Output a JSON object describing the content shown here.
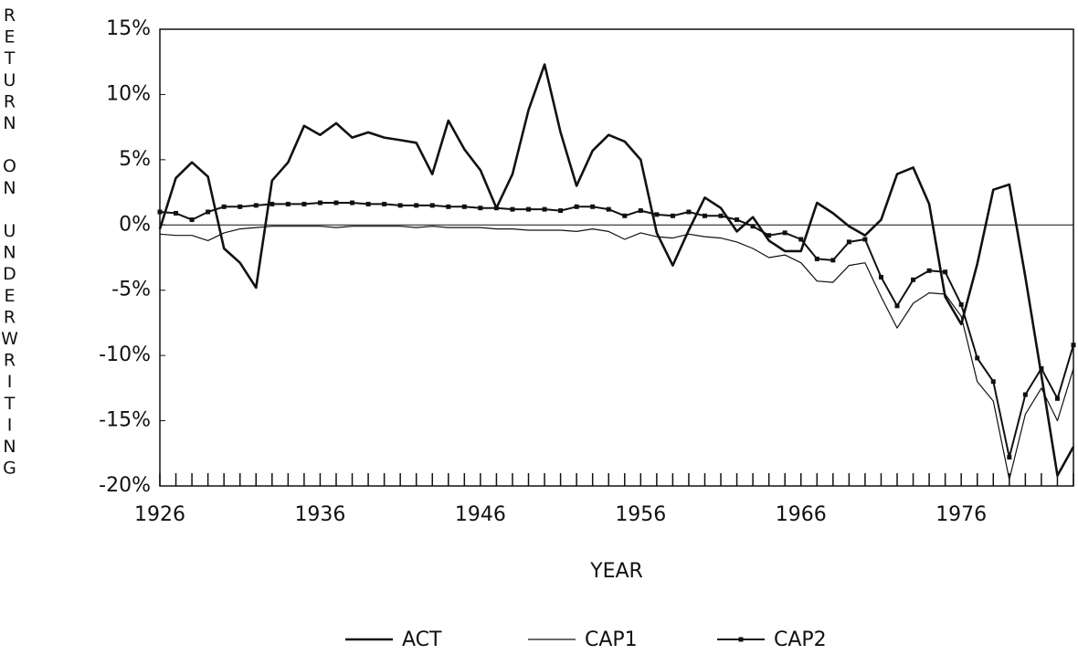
{
  "chart_data": {
    "type": "line",
    "ylabel": "RETURN ON UNDERWRITING",
    "xlabel": "YEAR",
    "x": [
      1926,
      1927,
      1928,
      1929,
      1930,
      1931,
      1932,
      1933,
      1934,
      1935,
      1936,
      1937,
      1938,
      1939,
      1940,
      1941,
      1942,
      1943,
      1944,
      1945,
      1946,
      1947,
      1948,
      1949,
      1950,
      1951,
      1952,
      1953,
      1954,
      1955,
      1956,
      1957,
      1958,
      1959,
      1960,
      1961,
      1962,
      1963,
      1964,
      1965,
      1966,
      1967,
      1968,
      1969,
      1970,
      1971,
      1972,
      1973,
      1974,
      1975,
      1976,
      1977,
      1978,
      1979,
      1980,
      1981,
      1982,
      1983
    ],
    "xlim": [
      1926,
      1983
    ],
    "xticks": [
      1926,
      1936,
      1946,
      1956,
      1966,
      1976
    ],
    "ylim": [
      -20,
      15
    ],
    "yticks": [
      {
        "value": -20,
        "label": "-20%"
      },
      {
        "value": -15,
        "label": "-15%"
      },
      {
        "value": -10,
        "label": "-10%"
      },
      {
        "value": -5,
        "label": "-5%"
      },
      {
        "value": 0,
        "label": "0%"
      },
      {
        "value": 5,
        "label": "5%"
      },
      {
        "value": 10,
        "label": "10%"
      },
      {
        "value": 15,
        "label": "15%"
      }
    ],
    "grid": false,
    "legend": "bottom",
    "series": [
      {
        "name": "ACT",
        "color": "#111111",
        "values": [
          -0.3,
          3.6,
          4.8,
          3.7,
          -1.8,
          -2.9,
          -4.8,
          3.4,
          4.8,
          7.6,
          6.9,
          7.8,
          6.7,
          7.1,
          6.7,
          6.5,
          6.3,
          3.9,
          8.0,
          5.8,
          4.2,
          1.3,
          3.9,
          8.8,
          12.3,
          7.1,
          3.0,
          5.7,
          6.9,
          6.4,
          5.0,
          -0.6,
          -3.1,
          -0.4,
          2.1,
          1.3,
          -0.5,
          0.6,
          -1.2,
          -2.0,
          -2.0,
          1.7,
          0.9,
          -0.1,
          -0.8,
          0.4,
          3.9,
          4.4,
          1.6,
          -5.5,
          -7.6,
          -3.0,
          2.7,
          3.1,
          -4.0,
          -11.5,
          -19.2,
          -17.0
        ]
      },
      {
        "name": "CAP1",
        "color": "#111111",
        "values": [
          -0.7,
          -0.8,
          -0.8,
          -1.2,
          -0.6,
          -0.3,
          -0.2,
          -0.1,
          -0.1,
          -0.1,
          -0.1,
          -0.2,
          -0.1,
          -0.1,
          -0.1,
          -0.1,
          -0.2,
          -0.1,
          -0.2,
          -0.2,
          -0.2,
          -0.3,
          -0.3,
          -0.4,
          -0.4,
          -0.4,
          -0.5,
          -0.3,
          -0.5,
          -1.1,
          -0.6,
          -0.9,
          -1.0,
          -0.7,
          -0.9,
          -1.0,
          -1.3,
          -1.8,
          -2.5,
          -2.3,
          -2.9,
          -4.3,
          -4.4,
          -3.1,
          -2.9,
          -5.5,
          -7.9,
          -6.0,
          -5.2,
          -5.3,
          -7.0,
          -12.0,
          -13.5,
          -19.5,
          -14.5,
          -12.5,
          -15.0,
          -11.0
        ]
      },
      {
        "name": "CAP2",
        "color": "#111111",
        "values": [
          1.0,
          0.9,
          0.4,
          1.0,
          1.4,
          1.4,
          1.5,
          1.6,
          1.6,
          1.6,
          1.7,
          1.7,
          1.7,
          1.6,
          1.6,
          1.5,
          1.5,
          1.5,
          1.4,
          1.4,
          1.3,
          1.3,
          1.2,
          1.2,
          1.2,
          1.1,
          1.4,
          1.4,
          1.2,
          0.7,
          1.1,
          0.8,
          0.7,
          1.0,
          0.7,
          0.7,
          0.4,
          -0.1,
          -0.8,
          -0.6,
          -1.1,
          -2.6,
          -2.7,
          -1.3,
          -1.1,
          -4.0,
          -6.2,
          -4.2,
          -3.5,
          -3.6,
          -6.1,
          -10.2,
          -12.0,
          -17.8,
          -13.0,
          -11.0,
          -13.3,
          -9.2
        ]
      }
    ]
  }
}
